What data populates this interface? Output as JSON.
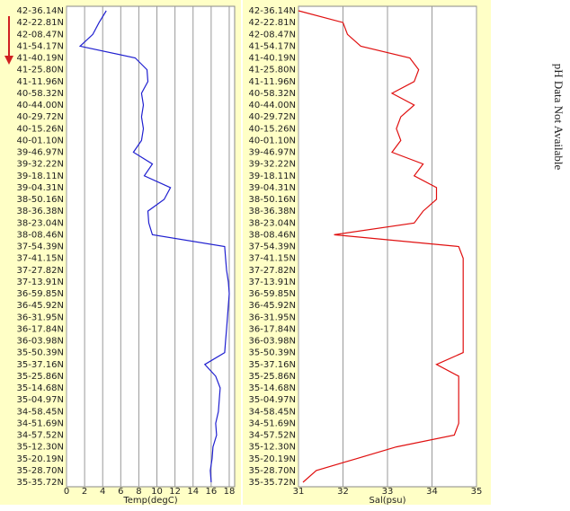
{
  "chart_data": [
    {
      "type": "line",
      "xlabel": "Temp(degC)",
      "xlim": [
        0,
        18.6
      ],
      "xticks": [
        0,
        2,
        4,
        6,
        8,
        10,
        12,
        14,
        16,
        18
      ],
      "grid": true,
      "categories": [
        "42-36.14N",
        "42-22.81N",
        "42-08.47N",
        "41-54.17N",
        "41-40.19N",
        "41-25.80N",
        "41-11.96N",
        "40-58.32N",
        "40-44.00N",
        "40-29.72N",
        "40-15.26N",
        "40-01.10N",
        "39-46.97N",
        "39-32.22N",
        "39-18.11N",
        "39-04.31N",
        "38-50.16N",
        "38-36.38N",
        "38-23.04N",
        "38-08.46N",
        "37-54.39N",
        "37-41.15N",
        "37-27.82N",
        "37-13.91N",
        "36-59.85N",
        "36-45.92N",
        "36-31.95N",
        "36-17.84N",
        "36-03.98N",
        "35-50.39N",
        "35-37.16N",
        "35-25.86N",
        "35-14.68N",
        "35-04.97N",
        "34-58.45N",
        "34-51.69N",
        "34-57.52N",
        "35-12.30N",
        "35-20.19N",
        "35-28.70N",
        "35-35.72N"
      ],
      "series": [
        {
          "color": "#2020d0",
          "values": [
            4.4,
            3.6,
            2.9,
            1.5,
            7.6,
            8.9,
            9.0,
            8.3,
            8.5,
            8.3,
            8.5,
            8.3,
            7.4,
            9.5,
            8.6,
            11.5,
            10.8,
            9.0,
            9.1,
            9.5,
            17.5,
            17.6,
            17.7,
            17.9,
            18.0,
            17.9,
            17.8,
            17.7,
            17.6,
            17.5,
            15.3,
            16.5,
            17.0,
            16.9,
            16.8,
            16.5,
            16.6,
            16.2,
            16.1,
            15.9,
            16.0
          ]
        }
      ]
    },
    {
      "type": "line",
      "xlabel": "Sal(psu)",
      "xlim": [
        31,
        35
      ],
      "xticks": [
        31,
        32,
        33,
        34,
        35
      ],
      "grid": true,
      "categories": [
        "42-36.14N",
        "42-22.81N",
        "42-08.47N",
        "41-54.17N",
        "41-40.19N",
        "41-25.80N",
        "41-11.96N",
        "40-58.32N",
        "40-44.00N",
        "40-29.72N",
        "40-15.26N",
        "40-01.10N",
        "39-46.97N",
        "39-32.22N",
        "39-18.11N",
        "39-04.31N",
        "38-50.16N",
        "38-36.38N",
        "38-23.04N",
        "38-08.46N",
        "37-54.39N",
        "37-41.15N",
        "37-27.82N",
        "37-13.91N",
        "36-59.85N",
        "36-45.92N",
        "36-31.95N",
        "36-17.84N",
        "36-03.98N",
        "35-50.39N",
        "35-37.16N",
        "35-25.86N",
        "35-14.68N",
        "35-04.97N",
        "34-58.45N",
        "34-51.69N",
        "34-57.52N",
        "35-12.30N",
        "35-20.19N",
        "35-28.70N",
        "35-35.72N"
      ],
      "series": [
        {
          "color": "#e01010",
          "values": [
            31.0,
            32.0,
            32.1,
            32.4,
            33.5,
            33.7,
            33.6,
            33.1,
            33.6,
            33.3,
            33.2,
            33.3,
            33.1,
            33.8,
            33.6,
            34.1,
            34.1,
            33.8,
            33.6,
            31.8,
            34.6,
            34.7,
            34.7,
            34.7,
            34.7,
            34.7,
            34.7,
            34.7,
            34.7,
            34.7,
            34.1,
            34.6,
            34.6,
            34.6,
            34.6,
            34.6,
            34.5,
            33.2,
            32.3,
            31.4,
            31.1
          ]
        }
      ]
    }
  ],
  "side_text": "pH Data Not Available"
}
